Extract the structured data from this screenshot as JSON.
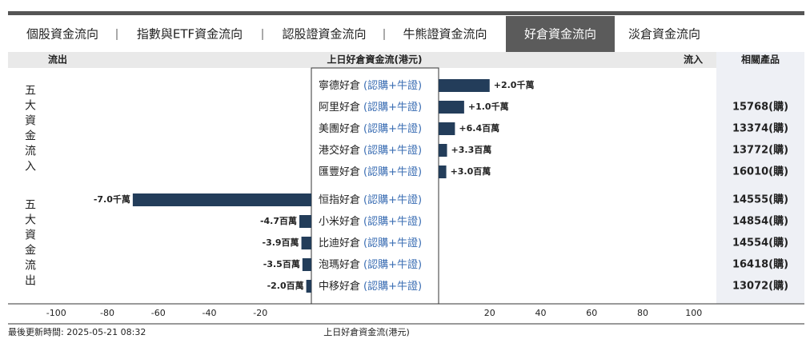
{
  "tabs": [
    "個股資金流向",
    "指數與ETF資金流向",
    "認股證資金流向",
    "牛熊證資金流向",
    "好倉資金流向",
    "淡倉資金流向"
  ],
  "active_tab": 4,
  "header": {
    "outflow": "流出",
    "center": "上日好倉資金流(港元)",
    "inflow": "流入",
    "products": "相關產品"
  },
  "group_labels": {
    "inflow": "五大資金流入",
    "outflow": "五大資金流出"
  },
  "footer": {
    "updated": "最後更新時間: 2025-05-21 08:32"
  },
  "chart_data": {
    "type": "diverging-bar",
    "categories": [
      "寧德好倉",
      "阿里好倉",
      "美團好倉",
      "港交好倉",
      "匯豐好倉",
      "恒指好倉",
      "小米好倉",
      "比迪好倉",
      "泡瑪好倉",
      "中移好倉"
    ],
    "category_suffix": "(認購+牛證)",
    "values": [
      20,
      10,
      6.4,
      3.3,
      3.0,
      -70,
      -4.7,
      -3.9,
      -3.5,
      -2.0
    ],
    "value_labels": [
      "+2.0千萬",
      "+1.0千萬",
      "+6.4百萬",
      "+3.3百萬",
      "+3.0百萬",
      "-7.0千萬",
      "-4.7百萬",
      "-3.9百萬",
      "-3.5百萬",
      "-2.0百萬"
    ],
    "products": [
      null,
      "15768(購)",
      "13374(購)",
      "13772(購)",
      "16010(購)",
      "14555(購)",
      "14854(購)",
      "14554(購)",
      "16418(購)",
      "13072(購)"
    ],
    "color": "#233d5a",
    "xlim": [
      -100,
      100
    ],
    "xticks": [
      -100,
      -80,
      -60,
      -40,
      -20,
      20,
      40,
      60,
      80,
      100
    ],
    "x_label": "上日好倉資金流(港元)"
  }
}
